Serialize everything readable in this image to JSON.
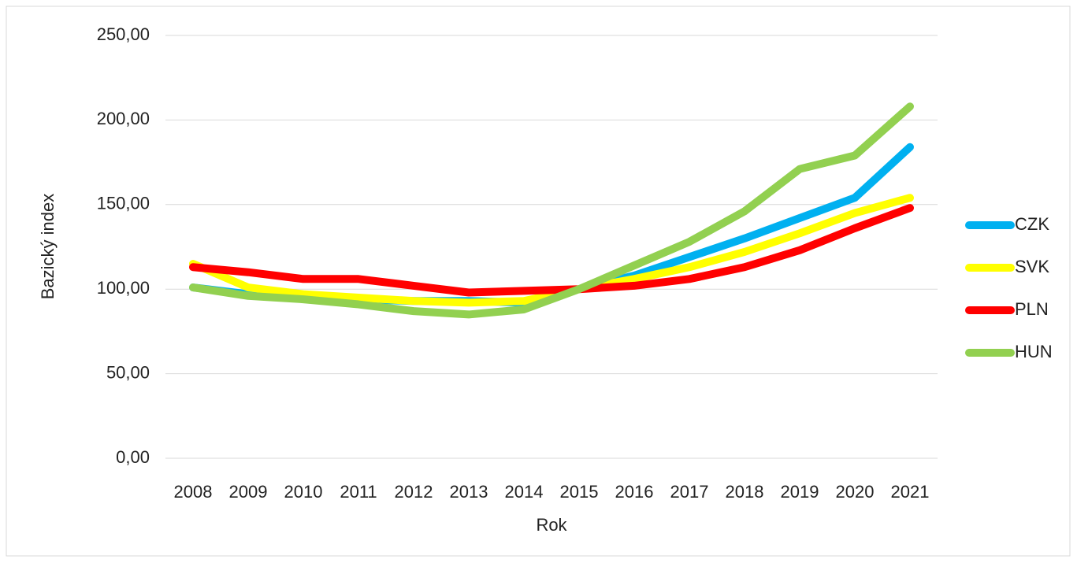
{
  "chart_data": {
    "type": "line",
    "x_label": "Rok",
    "y_label": "Bazický index",
    "categories": [
      "2008",
      "2009",
      "2010",
      "2011",
      "2012",
      "2013",
      "2014",
      "2015",
      "2016",
      "2017",
      "2018",
      "2019",
      "2020",
      "2021"
    ],
    "series": [
      {
        "name": "CZK",
        "color": "#00b0f0",
        "values": [
          101,
          97,
          95,
          94,
          93,
          93,
          92,
          100,
          108,
          119,
          130,
          142,
          154,
          184
        ]
      },
      {
        "name": "SVK",
        "color": "#ffff00",
        "values": [
          115,
          101,
          97,
          95,
          93,
          92,
          93,
          100,
          106,
          113,
          122,
          133,
          145,
          154
        ]
      },
      {
        "name": "PLN",
        "color": "#ff0000",
        "values": [
          113,
          110,
          106,
          106,
          102,
          98,
          99,
          100,
          102,
          106,
          113,
          123,
          136,
          148
        ]
      },
      {
        "name": "HUN",
        "color": "#92d050",
        "values": [
          101,
          96,
          94,
          91,
          87,
          85,
          88,
          100,
          114,
          128,
          146,
          171,
          179,
          208
        ]
      }
    ],
    "ylim": [
      0,
      250
    ],
    "yticks": [
      {
        "value": 0,
        "label": "0,00"
      },
      {
        "value": 50,
        "label": "50,00"
      },
      {
        "value": 100,
        "label": "100,00"
      },
      {
        "value": 150,
        "label": "150,00"
      },
      {
        "value": 200,
        "label": "200,00"
      },
      {
        "value": 250,
        "label": "250,00"
      }
    ],
    "grid": true,
    "legend": "right"
  }
}
